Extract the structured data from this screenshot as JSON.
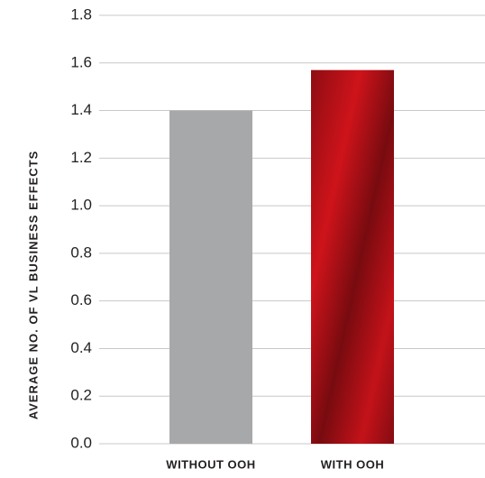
{
  "chart_data": {
    "type": "bar",
    "y_label": "AVERAGE NO. OF VL BUSINESS EFFECTS",
    "categories": [
      "WITHOUT OOH",
      "WITH OOH"
    ],
    "values": [
      1.4,
      1.57
    ],
    "colors": [
      "#a7a8aa",
      "#d9141c"
    ],
    "ylim": [
      0,
      1.8
    ],
    "yticks": [
      {
        "value": 0,
        "label": "0.0"
      },
      0.2,
      0.4,
      0.6,
      0.8,
      {
        "value": 1,
        "label": "1.0"
      },
      1.2,
      1.4,
      1.6,
      1.8
    ],
    "grid": true
  }
}
